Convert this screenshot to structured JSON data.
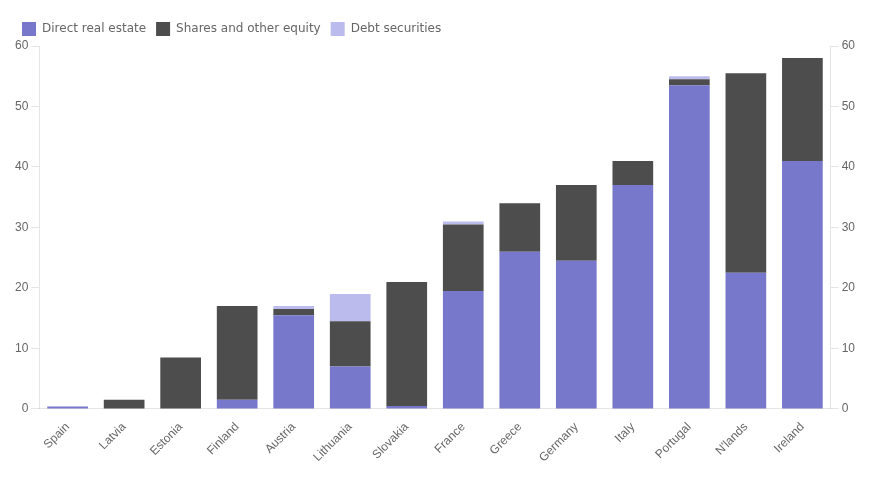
{
  "chart_data": {
    "type": "bar",
    "stacked": true,
    "categories": [
      "Spain",
      "Latvia",
      "Estonia",
      "Finland",
      "Austria",
      "Lithuania",
      "Slovakia",
      "France",
      "Greece",
      "Germany",
      "Italy",
      "Portugal",
      "N'lands",
      "Ireland"
    ],
    "series": [
      {
        "name": "Direct real estate",
        "color": "#7777cc",
        "values": [
          0.4,
          0.0,
          0.0,
          1.5,
          15.5,
          7.0,
          0.5,
          19.5,
          26.0,
          24.5,
          37.0,
          53.5,
          22.5,
          41.0
        ]
      },
      {
        "name": "Shares and other equity",
        "color": "#4d4d4d",
        "values": [
          0.0,
          1.5,
          8.5,
          15.5,
          1.0,
          7.5,
          20.5,
          11.0,
          8.0,
          12.5,
          4.0,
          1.0,
          33.0,
          17.0
        ]
      },
      {
        "name": "Debt securities",
        "color": "#bbbbed",
        "values": [
          0.0,
          0.0,
          0.0,
          0.0,
          0.5,
          4.5,
          0.0,
          0.5,
          0.0,
          0.0,
          0.0,
          0.5,
          0.0,
          0.0
        ]
      }
    ],
    "ylim": [
      0,
      60
    ],
    "yticks": [
      0,
      10,
      20,
      30,
      40,
      50,
      60
    ],
    "y2lim": [
      0,
      60
    ],
    "y2ticks": [
      0,
      10,
      20,
      30,
      40,
      50,
      60
    ],
    "grid": false,
    "legend": "upper left"
  }
}
